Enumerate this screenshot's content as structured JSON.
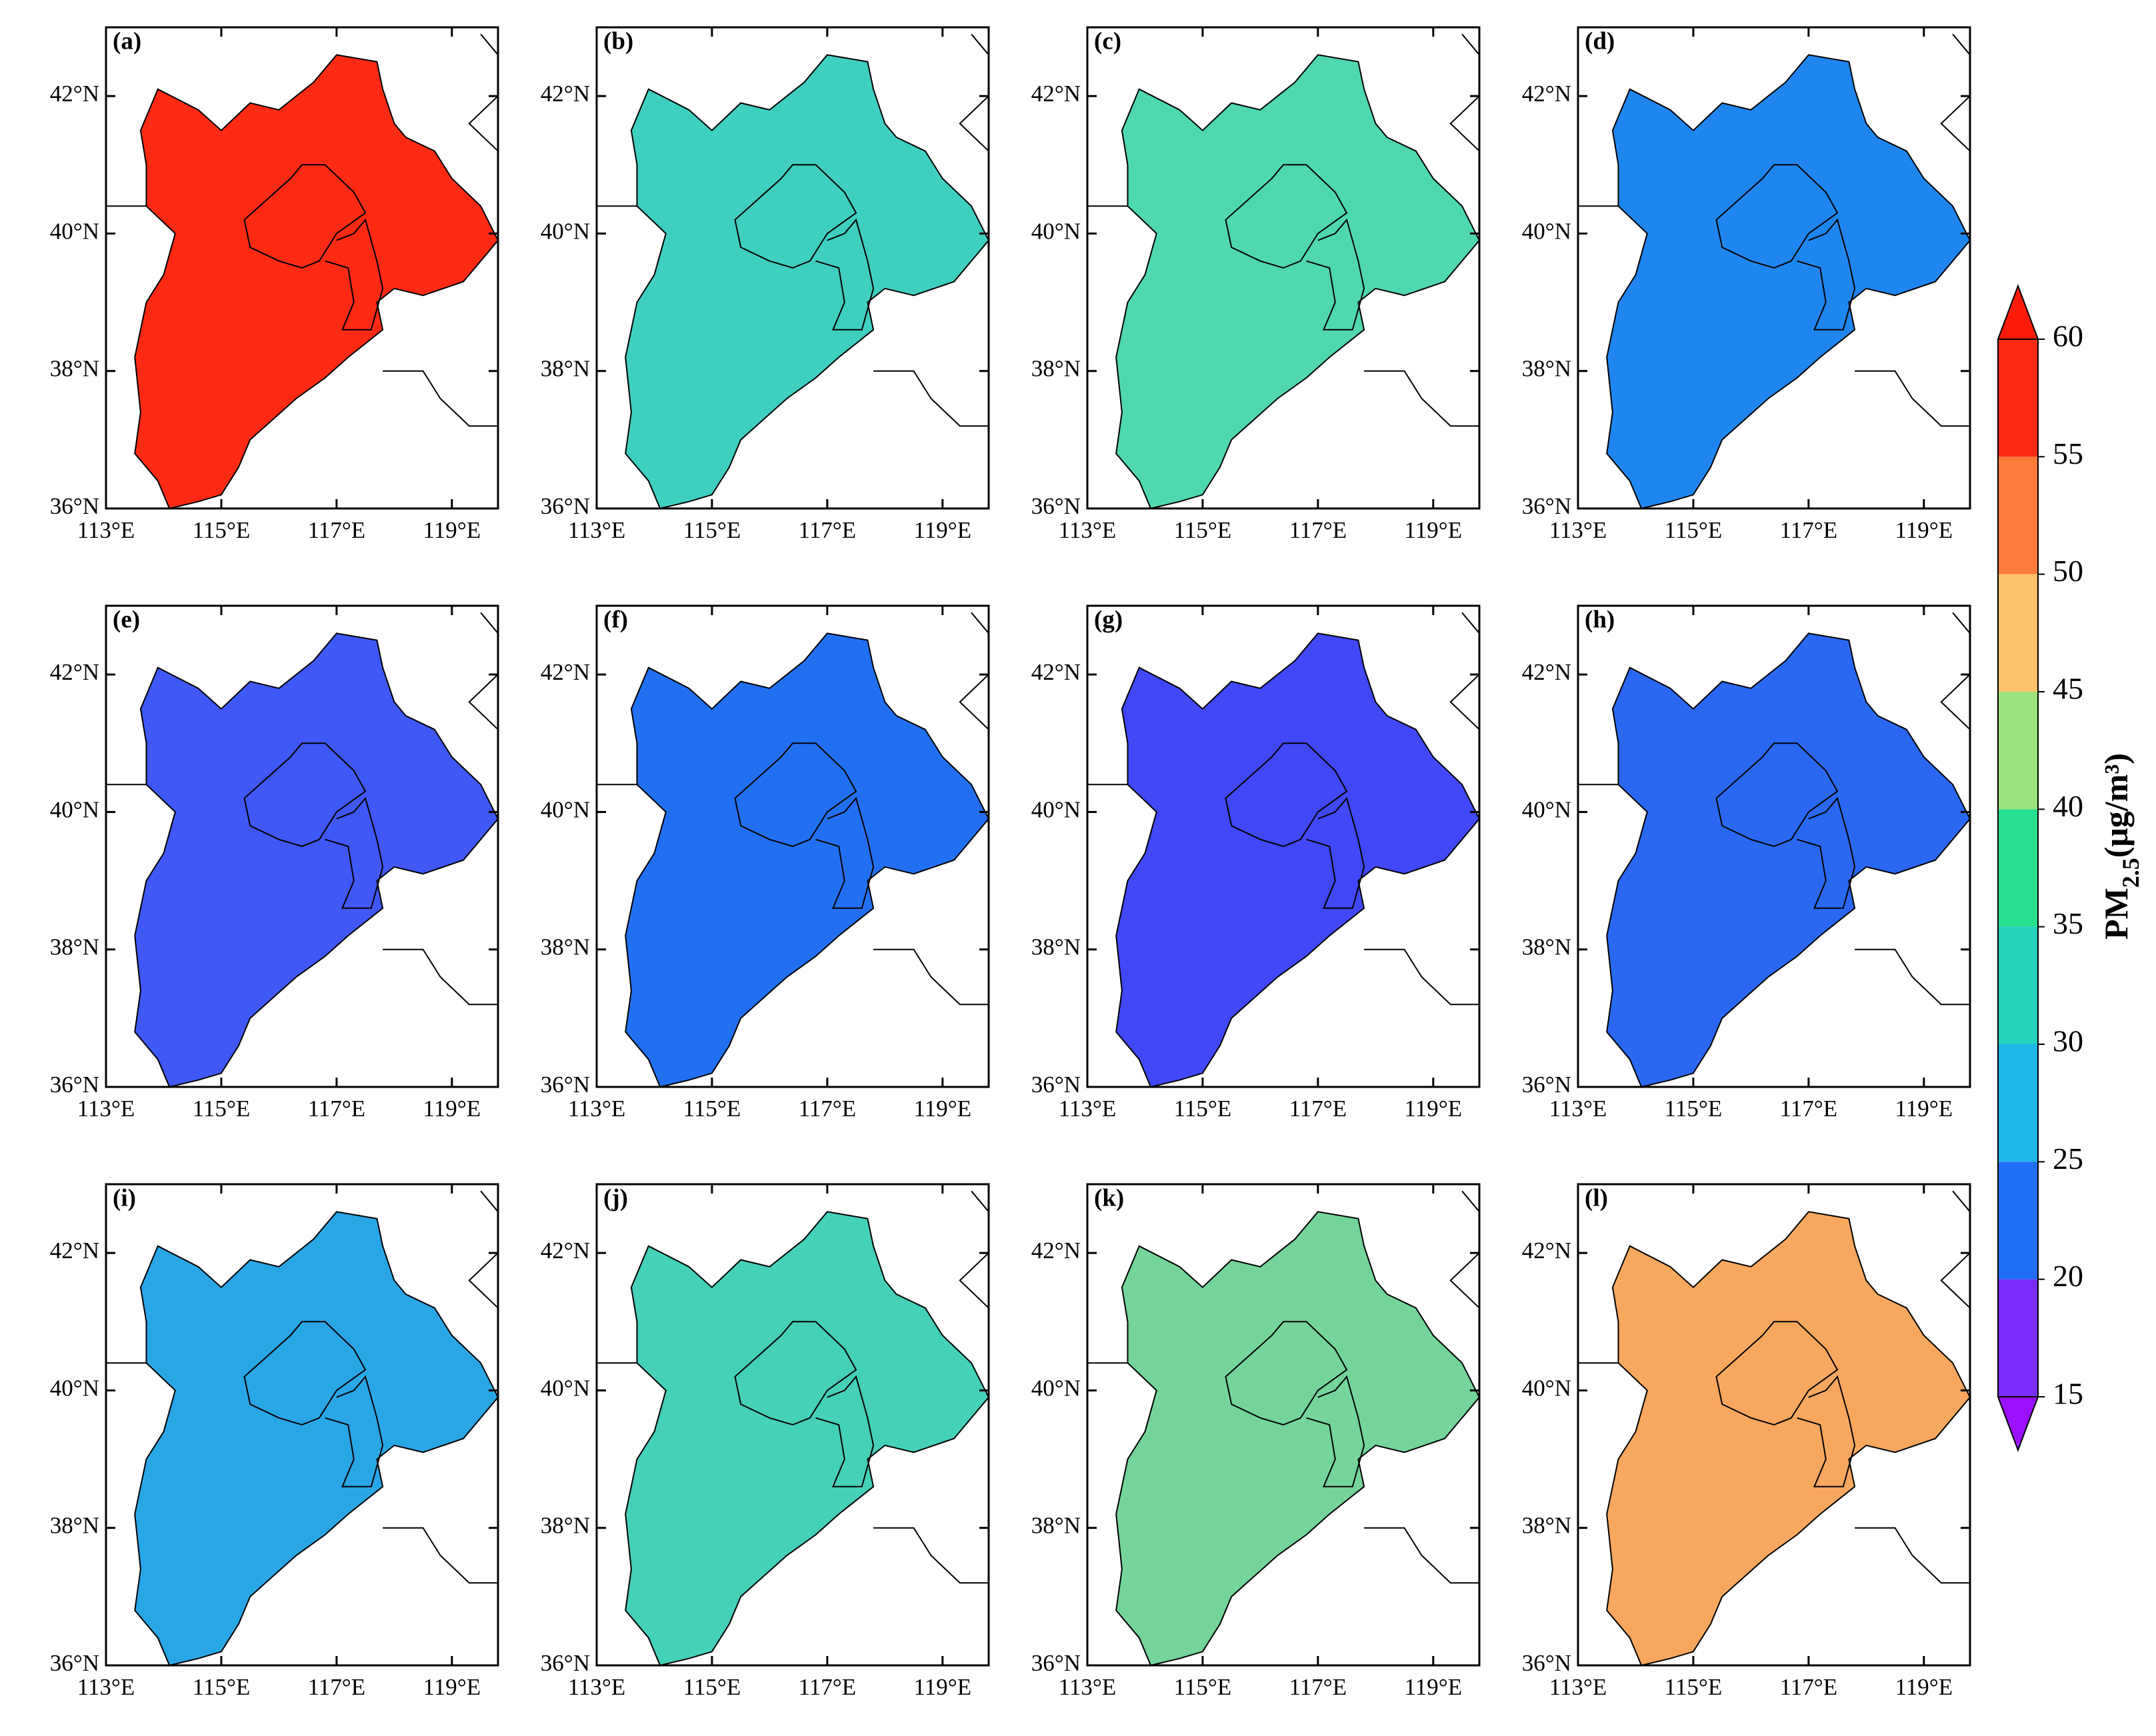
{
  "map": {
    "xlim": [
      113,
      119.8
    ],
    "ylim": [
      36,
      43
    ],
    "xticks": [
      {
        "value": 113,
        "label": "113°E"
      },
      {
        "value": 115,
        "label": "115°E"
      },
      {
        "value": 117,
        "label": "117°E"
      },
      {
        "value": 119,
        "label": "119°E"
      }
    ],
    "yticks": [
      {
        "value": 36,
        "label": "36°N"
      },
      {
        "value": 38,
        "label": "38°N"
      },
      {
        "value": 40,
        "label": "40°N"
      },
      {
        "value": 42,
        "label": "42°N"
      }
    ]
  },
  "panels": [
    {
      "label": "(a)",
      "color": "#ff2a14"
    },
    {
      "label": "(b)",
      "color": "#3fcfc0"
    },
    {
      "label": "(c)",
      "color": "#4fd8b0"
    },
    {
      "label": "(d)",
      "color": "#1f86f0"
    },
    {
      "label": "(e)",
      "color": "#3f58f6"
    },
    {
      "label": "(f)",
      "color": "#2270f2"
    },
    {
      "label": "(g)",
      "color": "#4048f8"
    },
    {
      "label": "(h)",
      "color": "#2a68f2"
    },
    {
      "label": "(i)",
      "color": "#29a6e6"
    },
    {
      "label": "(j)",
      "color": "#45d0b8"
    },
    {
      "label": "(k)",
      "color": "#74d49a"
    },
    {
      "label": "(l)",
      "color": "#f7a85e"
    }
  ],
  "colorbar": {
    "label": {
      "main": "PM",
      "sub": "2.5",
      "unit": "(μg/m³)"
    },
    "ticks": [
      15,
      20,
      25,
      30,
      35,
      40,
      45,
      50,
      55,
      60
    ],
    "colors": [
      "#7a2cff",
      "#1e6ff5",
      "#1db6e6",
      "#24d2bd",
      "#27e08e",
      "#9de27c",
      "#ffc26c",
      "#ff7b3a",
      "#ff2a14"
    ],
    "under": "#9a10ff",
    "over": "#ff1a0a"
  }
}
